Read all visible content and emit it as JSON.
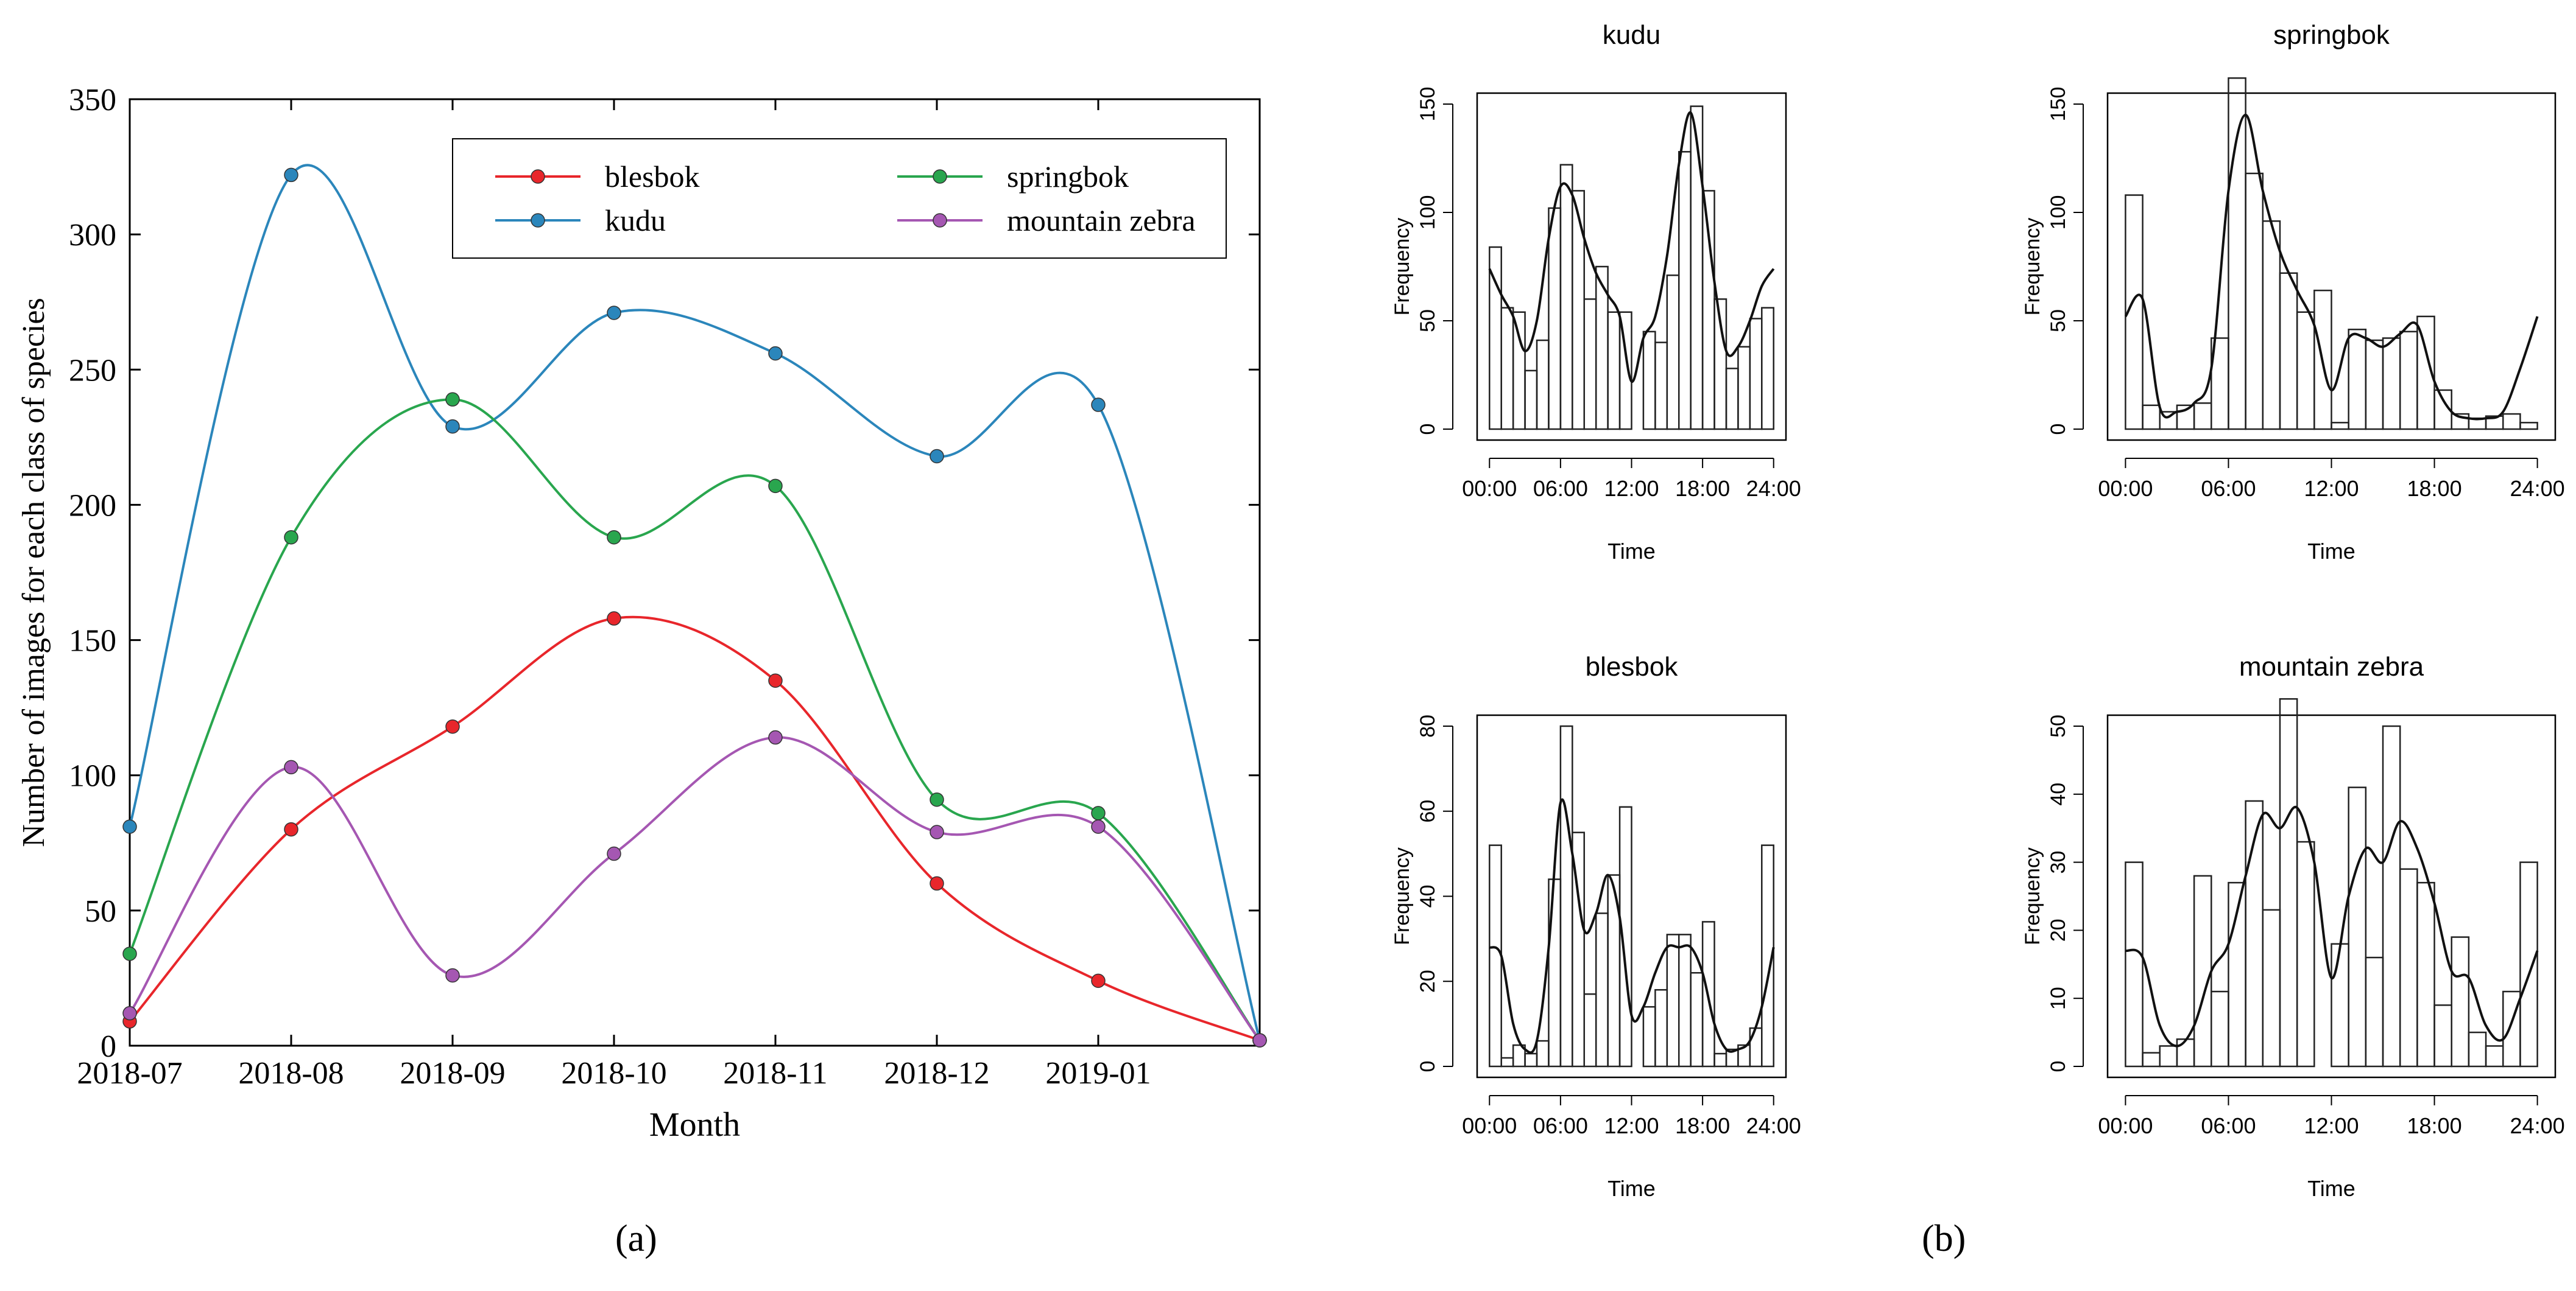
{
  "panel_labels": {
    "a": "(a)",
    "b": "(b)"
  },
  "chart_data": [
    {
      "type": "line",
      "title": "",
      "xlabel": "Month",
      "ylabel": "Number of images for each class of species",
      "categories": [
        "2018-07",
        "2018-08",
        "2018-09",
        "2018-10",
        "2018-11",
        "2018-12",
        "2019-01",
        ""
      ],
      "ylim": [
        0,
        350
      ],
      "yticks": [
        0,
        50,
        100,
        150,
        200,
        250,
        300,
        350
      ],
      "grid": false,
      "legend_placement": "top-right",
      "series": [
        {
          "name": "blesbok",
          "color": "#e8262b",
          "values": [
            9,
            80,
            118,
            158,
            135,
            60,
            24,
            2
          ]
        },
        {
          "name": "kudu",
          "color": "#2b86bb",
          "values": [
            81,
            322,
            229,
            271,
            256,
            218,
            237,
            2
          ]
        },
        {
          "name": "springbok",
          "color": "#29a64e",
          "values": [
            34,
            188,
            239,
            188,
            207,
            91,
            86,
            2
          ]
        },
        {
          "name": "mountain zebra",
          "color": "#a557b2",
          "values": [
            12,
            103,
            26,
            71,
            114,
            79,
            81,
            2
          ]
        }
      ]
    },
    {
      "type": "bar",
      "title": "kudu",
      "xlabel": "Time",
      "ylabel": "Frequency",
      "categories": [
        "00:00",
        "01:00",
        "02:00",
        "03:00",
        "04:00",
        "05:00",
        "06:00",
        "07:00",
        "08:00",
        "09:00",
        "10:00",
        "11:00",
        "12:00",
        "13:00",
        "14:00",
        "15:00",
        "16:00",
        "17:00",
        "18:00",
        "19:00",
        "20:00",
        "21:00",
        "22:00",
        "23:00"
      ],
      "values": [
        84,
        56,
        54,
        27,
        41,
        102,
        122,
        110,
        60,
        75,
        54,
        54,
        0,
        45,
        40,
        71,
        128,
        149,
        110,
        60,
        28,
        38,
        51,
        56
      ],
      "density": [
        74,
        62,
        52,
        36,
        50,
        88,
        112,
        108,
        88,
        72,
        62,
        52,
        22,
        42,
        52,
        80,
        122,
        146,
        112,
        68,
        36,
        38,
        50,
        66,
        74
      ],
      "ylim": [
        0,
        150
      ],
      "yticks": [
        0,
        50,
        100,
        150
      ],
      "xticks": [
        "00:00",
        "06:00",
        "12:00",
        "18:00",
        "24:00"
      ]
    },
    {
      "type": "bar",
      "title": "springbok",
      "xlabel": "Time",
      "ylabel": "Frequency",
      "categories": [
        "00:00",
        "01:00",
        "02:00",
        "03:00",
        "04:00",
        "05:00",
        "06:00",
        "07:00",
        "08:00",
        "09:00",
        "10:00",
        "11:00",
        "12:00",
        "13:00",
        "14:00",
        "15:00",
        "16:00",
        "17:00",
        "18:00",
        "19:00",
        "20:00",
        "21:00",
        "22:00",
        "23:00"
      ],
      "values": [
        108,
        11,
        8,
        11,
        12,
        42,
        162,
        118,
        96,
        72,
        54,
        64,
        3,
        46,
        41,
        42,
        45,
        52,
        18,
        7,
        5,
        6,
        7,
        3
      ],
      "density": [
        52,
        60,
        10,
        8,
        12,
        28,
        110,
        145,
        110,
        82,
        64,
        48,
        18,
        42,
        42,
        38,
        44,
        48,
        22,
        8,
        5,
        5,
        8,
        28,
        52
      ],
      "ylim": [
        0,
        150
      ],
      "yticks": [
        0,
        50,
        100,
        150
      ],
      "xticks": [
        "00:00",
        "06:00",
        "12:00",
        "18:00",
        "24:00"
      ]
    },
    {
      "type": "bar",
      "title": "blesbok",
      "xlabel": "Time",
      "ylabel": "Frequency",
      "categories": [
        "00:00",
        "01:00",
        "02:00",
        "03:00",
        "04:00",
        "05:00",
        "06:00",
        "07:00",
        "08:00",
        "09:00",
        "10:00",
        "11:00",
        "12:00",
        "13:00",
        "14:00",
        "15:00",
        "16:00",
        "17:00",
        "18:00",
        "19:00",
        "20:00",
        "21:00",
        "22:00",
        "23:00"
      ],
      "values": [
        52,
        2,
        5,
        3,
        6,
        44,
        80,
        55,
        17,
        36,
        45,
        61,
        0,
        14,
        18,
        31,
        31,
        22,
        34,
        3,
        4,
        5,
        9,
        52
      ],
      "density": [
        28,
        26,
        10,
        4,
        6,
        28,
        62,
        50,
        32,
        36,
        45,
        35,
        12,
        14,
        22,
        28,
        28,
        28,
        22,
        10,
        4,
        4,
        6,
        14,
        28
      ],
      "ylim": [
        0,
        80
      ],
      "yticks": [
        0,
        20,
        40,
        60,
        80
      ],
      "xticks": [
        "00:00",
        "06:00",
        "12:00",
        "18:00",
        "24:00"
      ]
    },
    {
      "type": "bar",
      "title": "mountain zebra",
      "xlabel": "Time",
      "ylabel": "Frequency",
      "categories": [
        "00:00",
        "01:00",
        "02:00",
        "03:00",
        "04:00",
        "05:00",
        "06:00",
        "07:00",
        "08:00",
        "09:00",
        "10:00",
        "11:00",
        "12:00",
        "13:00",
        "14:00",
        "15:00",
        "16:00",
        "17:00",
        "18:00",
        "19:00",
        "20:00",
        "21:00",
        "22:00",
        "23:00"
      ],
      "values": [
        30,
        2,
        3,
        4,
        28,
        11,
        27,
        39,
        23,
        54,
        33,
        0,
        18,
        41,
        16,
        50,
        29,
        27,
        9,
        19,
        5,
        3,
        11,
        30
      ],
      "density": [
        17,
        16,
        6,
        3,
        6,
        14,
        18,
        28,
        37,
        35,
        38,
        30,
        13,
        25,
        32,
        30,
        36,
        32,
        24,
        14,
        13,
        6,
        4,
        10,
        17
      ],
      "ylim": [
        0,
        50
      ],
      "yticks": [
        0,
        10,
        20,
        30,
        40,
        50
      ],
      "xticks": [
        "00:00",
        "06:00",
        "12:00",
        "18:00",
        "24:00"
      ]
    }
  ]
}
